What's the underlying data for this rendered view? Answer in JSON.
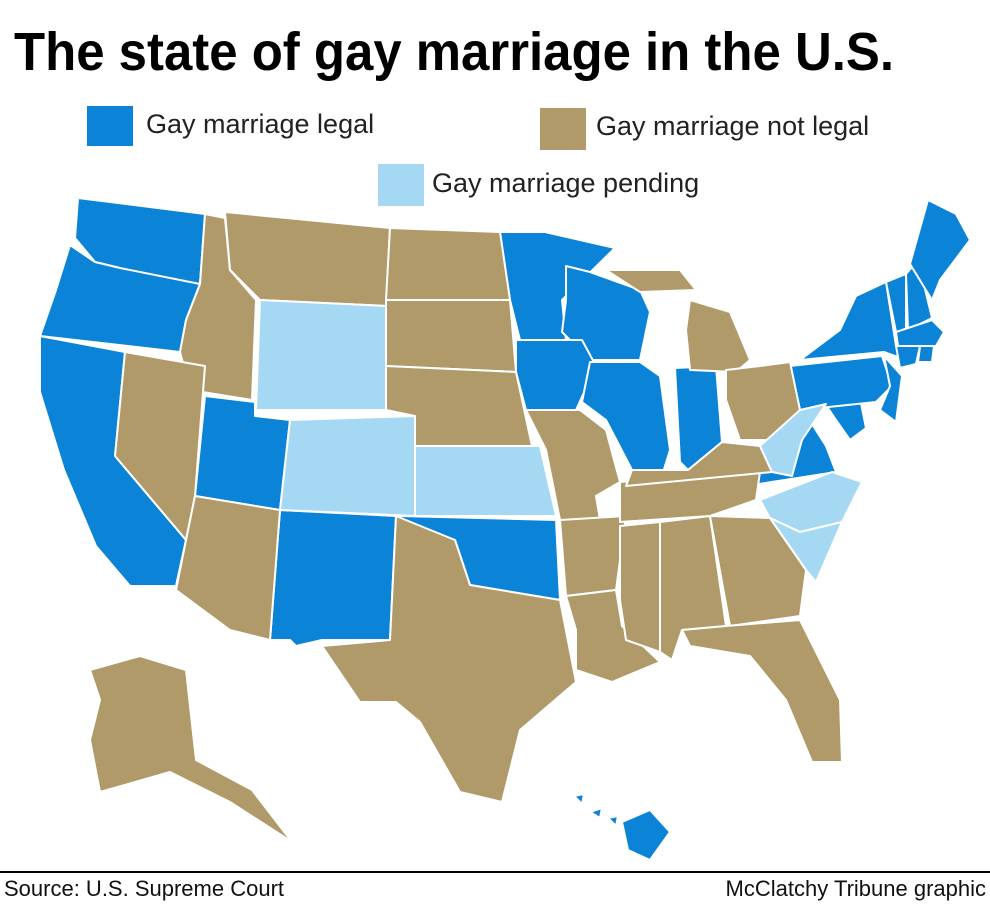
{
  "title": "The state of gay marriage in the U.S.",
  "legend": [
    {
      "label": "Gay marriage legal",
      "color": "#0b83d6"
    },
    {
      "label": "Gay marriage not legal",
      "color": "#b19a69"
    },
    {
      "label": "Gay marriage pending",
      "color": "#a5d9f3"
    }
  ],
  "footer": {
    "source": "Source: U.S. Supreme Court",
    "credit": "McClatchy Tribune graphic"
  }
}
